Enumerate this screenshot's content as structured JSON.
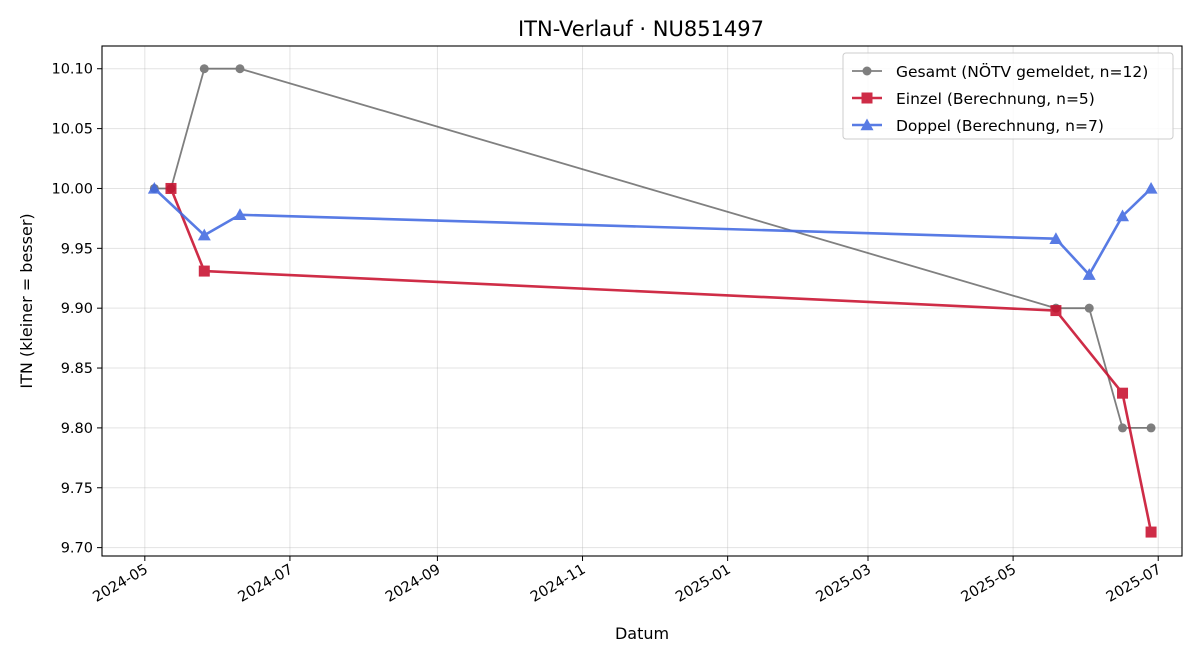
{
  "chart_data": {
    "type": "line",
    "title": "ITN-Verlauf · NU851497",
    "xlabel": "Datum",
    "ylabel": "ITN  (kleiner = besser)",
    "x_axis": "date",
    "xlim": [
      "2024-04-13",
      "2025-07-11"
    ],
    "ylim": [
      9.693,
      10.119
    ],
    "x_ticks": [
      "2024-05",
      "2024-07",
      "2024-09",
      "2024-11",
      "2025-01",
      "2025-03",
      "2025-05",
      "2025-07"
    ],
    "y_ticks": [
      "9.70",
      "9.75",
      "9.80",
      "9.85",
      "9.90",
      "9.95",
      "10.00",
      "10.05",
      "10.10"
    ],
    "grid": true,
    "legend_position": "top-right",
    "series": [
      {
        "name": "Gesamt (NÖTV gemeldet, n=12)",
        "color": "#555555",
        "marker": "circle",
        "points": [
          {
            "x": "2024-05-05",
            "y": 10.0
          },
          {
            "x": "2024-05-12",
            "y": 10.0
          },
          {
            "x": "2024-05-26",
            "y": 10.1
          },
          {
            "x": "2024-06-10",
            "y": 10.1
          },
          {
            "x": "2025-05-19",
            "y": 9.9
          },
          {
            "x": "2025-06-02",
            "y": 9.9
          },
          {
            "x": "2025-06-16",
            "y": 9.8
          },
          {
            "x": "2025-06-28",
            "y": 9.8
          }
        ]
      },
      {
        "name": "Einzel (Berechnung, n=5)",
        "color": "#c8102e",
        "marker": "square",
        "points": [
          {
            "x": "2024-05-12",
            "y": 10.0
          },
          {
            "x": "2024-05-26",
            "y": 9.931
          },
          {
            "x": "2025-05-19",
            "y": 9.898
          },
          {
            "x": "2025-06-16",
            "y": 9.829
          },
          {
            "x": "2025-06-28",
            "y": 9.713
          }
        ]
      },
      {
        "name": "Doppel (Berechnung, n=7)",
        "color": "#4169e1",
        "marker": "triangle",
        "points": [
          {
            "x": "2024-05-05",
            "y": 10.0
          },
          {
            "x": "2024-05-26",
            "y": 9.961
          },
          {
            "x": "2024-06-10",
            "y": 9.978
          },
          {
            "x": "2025-05-19",
            "y": 9.958
          },
          {
            "x": "2025-06-02",
            "y": 9.928
          },
          {
            "x": "2025-06-16",
            "y": 9.977
          },
          {
            "x": "2025-06-28",
            "y": 10.0
          }
        ]
      }
    ]
  }
}
